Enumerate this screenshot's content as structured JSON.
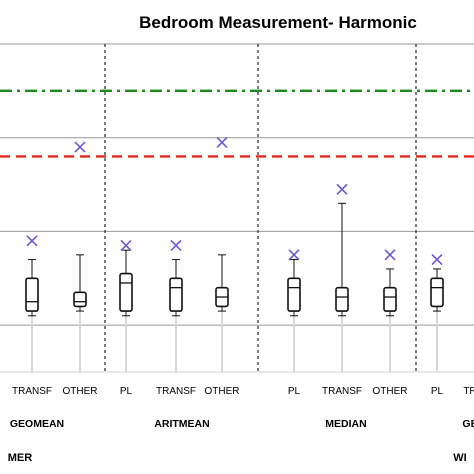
{
  "chart_data": {
    "type": "box",
    "title": "Bedroom Measurement- Harmonic",
    "xlabel": "",
    "ylabel": "",
    "grid": true,
    "groups": [
      {
        "label": "GEOMEAN",
        "categories": [
          "",
          "TRANSF",
          "OTHER"
        ]
      },
      {
        "label": "ARITMEAN",
        "categories": [
          "PL",
          "TRANSF",
          "OTHER"
        ]
      },
      {
        "label": "MEDIAN",
        "categories": [
          "PL",
          "TRANSF",
          "OTHER"
        ]
      },
      {
        "label": "GE",
        "categories": [
          "PL",
          "TR"
        ]
      }
    ],
    "season_labels": [
      "MER",
      "WI"
    ],
    "boxes": [
      {
        "group": 0,
        "category": "TRANSF",
        "whisker_low": 3.1,
        "q1": 3.15,
        "median": 3.25,
        "q3": 3.5,
        "whisker_high": 3.7,
        "mean": 3.9
      },
      {
        "group": 0,
        "category": "OTHER",
        "whisker_low": 3.15,
        "q1": 3.2,
        "median": 3.25,
        "q3": 3.35,
        "whisker_high": 3.75,
        "mean": 4.9
      },
      {
        "group": 1,
        "category": "PL",
        "whisker_low": 3.1,
        "q1": 3.15,
        "median": 3.45,
        "q3": 3.55,
        "whisker_high": 3.8,
        "mean": 3.85
      },
      {
        "group": 1,
        "category": "TRANSF",
        "whisker_low": 3.1,
        "q1": 3.15,
        "median": 3.4,
        "q3": 3.5,
        "whisker_high": 3.7,
        "mean": 3.85
      },
      {
        "group": 1,
        "category": "OTHER",
        "whisker_low": 3.15,
        "q1": 3.2,
        "median": 3.3,
        "q3": 3.4,
        "whisker_high": 3.75,
        "mean": 4.95
      },
      {
        "group": 2,
        "category": "PL",
        "whisker_low": 3.1,
        "q1": 3.15,
        "median": 3.4,
        "q3": 3.5,
        "whisker_high": 3.7,
        "mean": 3.75
      },
      {
        "group": 2,
        "category": "TRANSF",
        "whisker_low": 3.1,
        "q1": 3.15,
        "median": 3.3,
        "q3": 3.4,
        "whisker_high": 4.3,
        "mean": 4.45
      },
      {
        "group": 2,
        "category": "OTHER",
        "whisker_low": 3.1,
        "q1": 3.15,
        "median": 3.3,
        "q3": 3.4,
        "whisker_high": 3.6,
        "mean": 3.75
      },
      {
        "group": 3,
        "category": "PL",
        "whisker_low": 3.15,
        "q1": 3.2,
        "median": 3.4,
        "q3": 3.5,
        "whisker_high": 3.6,
        "mean": 3.7
      }
    ],
    "reference_lines": [
      {
        "style": "dash-dot",
        "color": "#1a8a1a",
        "value": 5.5
      },
      {
        "style": "dashed",
        "color": "#e8231f",
        "value": 4.8
      }
    ],
    "mean_marker_color": "#6a5acd",
    "ylim": [
      2.5,
      6.0
    ]
  }
}
